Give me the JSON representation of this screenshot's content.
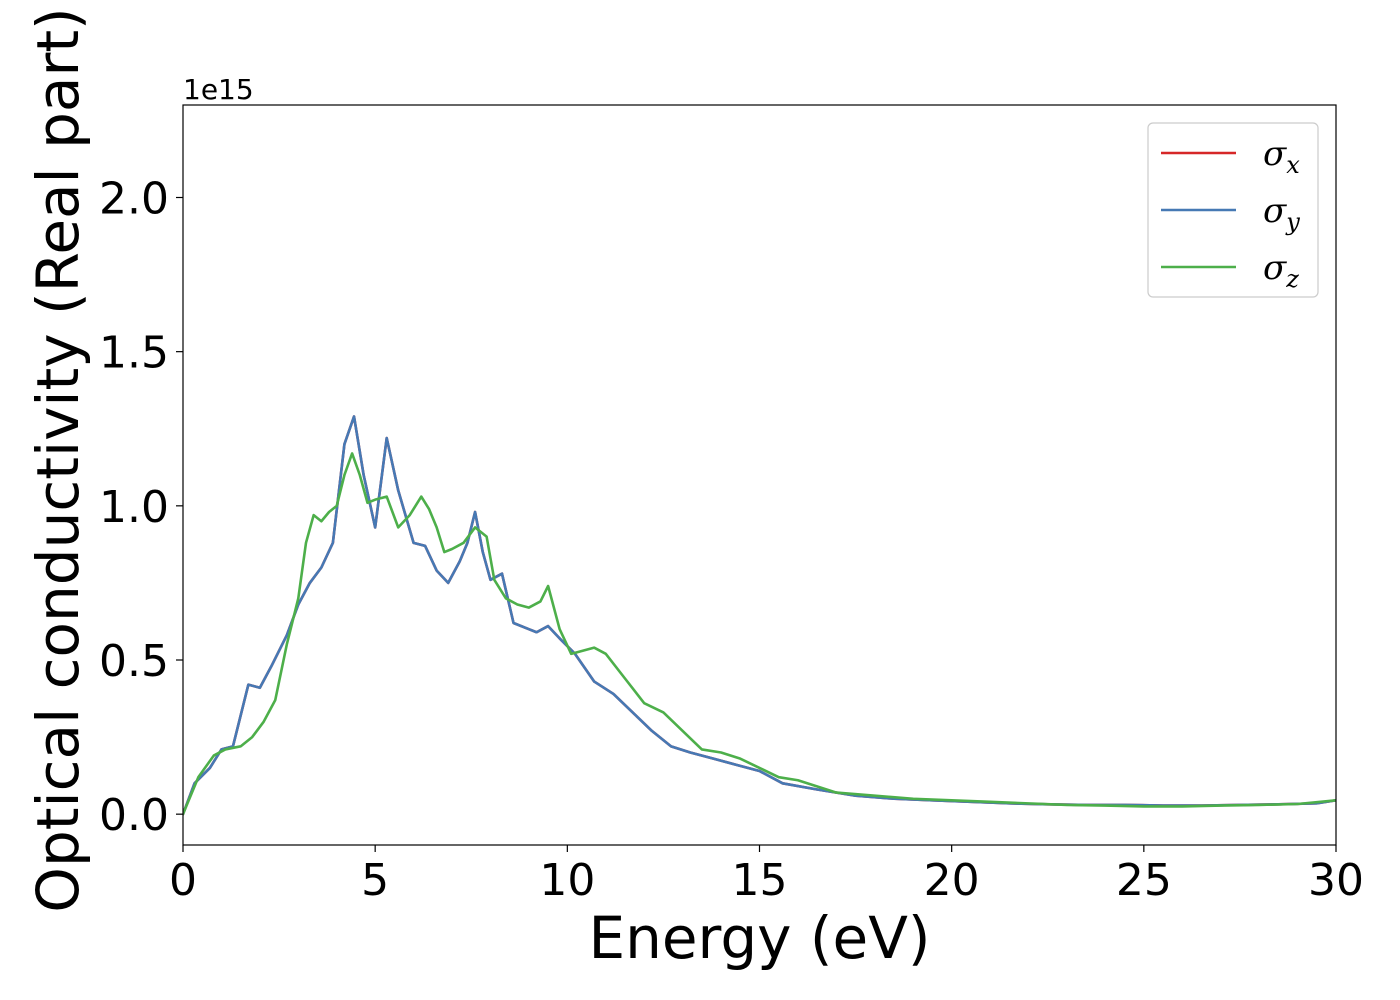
{
  "chart_data": {
    "type": "line",
    "title": "",
    "xlabel": "Energy (eV)",
    "ylabel": "Optical conductivity (Real part)",
    "y_offset_label": "1e15",
    "xlim": [
      0,
      30
    ],
    "ylim": [
      -0.1,
      2.3
    ],
    "xticks": [
      "0",
      "5",
      "10",
      "15",
      "20",
      "25",
      "30"
    ],
    "yticks": [
      "0.0",
      "0.5",
      "1.0",
      "1.5",
      "2.0"
    ],
    "grid": false,
    "legend_position": "top-right",
    "series": [
      {
        "name": "σx",
        "symbol": "σ",
        "subscript": "x",
        "color": "#d62728",
        "x": [
          0,
          0.3,
          0.7,
          1.0,
          1.3,
          1.7,
          2.0,
          2.3,
          2.7,
          3.0,
          3.3,
          3.6,
          3.9,
          4.2,
          4.45,
          4.7,
          5.0,
          5.3,
          5.6,
          6.0,
          6.3,
          6.6,
          6.9,
          7.2,
          7.4,
          7.6,
          7.8,
          8.0,
          8.3,
          8.6,
          9.0,
          9.2,
          9.5,
          9.8,
          10.2,
          10.7,
          11.2,
          11.7,
          12.2,
          12.7,
          13.2,
          13.8,
          14.4,
          15.0,
          15.6,
          16.5,
          17.5,
          18.5,
          19.5,
          20.5,
          21.5,
          22.5,
          23.5,
          24.5,
          25.5,
          26.5,
          27.5,
          28.5,
          29.5,
          30
        ],
        "y": [
          0.0,
          0.1,
          0.15,
          0.21,
          0.22,
          0.42,
          0.41,
          0.48,
          0.58,
          0.68,
          0.75,
          0.8,
          0.88,
          1.2,
          1.29,
          1.1,
          0.93,
          1.22,
          1.05,
          0.88,
          0.87,
          0.79,
          0.75,
          0.82,
          0.88,
          0.98,
          0.85,
          0.76,
          0.78,
          0.62,
          0.6,
          0.59,
          0.61,
          0.57,
          0.52,
          0.43,
          0.39,
          0.33,
          0.27,
          0.22,
          0.2,
          0.18,
          0.16,
          0.14,
          0.1,
          0.08,
          0.06,
          0.05,
          0.045,
          0.04,
          0.035,
          0.032,
          0.03,
          0.03,
          0.028,
          0.028,
          0.03,
          0.032,
          0.035,
          0.045
        ]
      },
      {
        "name": "σy",
        "symbol": "σ",
        "subscript": "y",
        "color": "#4679b4",
        "x": [
          0,
          0.3,
          0.7,
          1.0,
          1.3,
          1.7,
          2.0,
          2.3,
          2.7,
          3.0,
          3.3,
          3.6,
          3.9,
          4.2,
          4.45,
          4.7,
          5.0,
          5.3,
          5.6,
          6.0,
          6.3,
          6.6,
          6.9,
          7.2,
          7.4,
          7.6,
          7.8,
          8.0,
          8.3,
          8.6,
          9.0,
          9.2,
          9.5,
          9.8,
          10.2,
          10.7,
          11.2,
          11.7,
          12.2,
          12.7,
          13.2,
          13.8,
          14.4,
          15.0,
          15.6,
          16.5,
          17.5,
          18.5,
          19.5,
          20.5,
          21.5,
          22.5,
          23.5,
          24.5,
          25.5,
          26.5,
          27.5,
          28.5,
          29.5,
          30
        ],
        "y": [
          0.0,
          0.1,
          0.15,
          0.21,
          0.22,
          0.42,
          0.41,
          0.48,
          0.58,
          0.68,
          0.75,
          0.8,
          0.88,
          1.2,
          1.29,
          1.1,
          0.93,
          1.22,
          1.05,
          0.88,
          0.87,
          0.79,
          0.75,
          0.82,
          0.88,
          0.98,
          0.85,
          0.76,
          0.78,
          0.62,
          0.6,
          0.59,
          0.61,
          0.57,
          0.52,
          0.43,
          0.39,
          0.33,
          0.27,
          0.22,
          0.2,
          0.18,
          0.16,
          0.14,
          0.1,
          0.08,
          0.06,
          0.05,
          0.045,
          0.04,
          0.035,
          0.032,
          0.03,
          0.03,
          0.028,
          0.028,
          0.03,
          0.032,
          0.035,
          0.045
        ]
      },
      {
        "name": "σz",
        "symbol": "σ",
        "subscript": "z",
        "color": "#4daf4a",
        "x": [
          0,
          0.4,
          0.8,
          1.1,
          1.5,
          1.8,
          2.1,
          2.4,
          2.7,
          3.0,
          3.2,
          3.4,
          3.6,
          3.8,
          4.0,
          4.2,
          4.4,
          4.6,
          4.8,
          5.0,
          5.3,
          5.6,
          5.9,
          6.2,
          6.4,
          6.6,
          6.8,
          7.0,
          7.3,
          7.6,
          7.9,
          8.1,
          8.4,
          8.7,
          9.0,
          9.3,
          9.5,
          9.8,
          10.1,
          10.4,
          10.7,
          11.0,
          11.5,
          12.0,
          12.5,
          13.0,
          13.5,
          14.0,
          14.5,
          15.0,
          15.5,
          16.0,
          17.0,
          18.0,
          19.0,
          20.0,
          21.0,
          22.0,
          23.0,
          24.0,
          25.0,
          26.0,
          27.0,
          28.0,
          29.0,
          30
        ],
        "y": [
          0.0,
          0.12,
          0.19,
          0.21,
          0.22,
          0.25,
          0.3,
          0.37,
          0.55,
          0.7,
          0.88,
          0.97,
          0.95,
          0.98,
          1.0,
          1.1,
          1.17,
          1.1,
          1.01,
          1.02,
          1.03,
          0.93,
          0.97,
          1.03,
          0.99,
          0.93,
          0.85,
          0.86,
          0.88,
          0.93,
          0.9,
          0.76,
          0.7,
          0.68,
          0.67,
          0.69,
          0.74,
          0.6,
          0.52,
          0.53,
          0.54,
          0.52,
          0.44,
          0.36,
          0.33,
          0.27,
          0.21,
          0.2,
          0.18,
          0.15,
          0.12,
          0.11,
          0.07,
          0.06,
          0.05,
          0.045,
          0.04,
          0.035,
          0.03,
          0.028,
          0.025,
          0.025,
          0.028,
          0.03,
          0.033,
          0.045
        ]
      }
    ]
  }
}
